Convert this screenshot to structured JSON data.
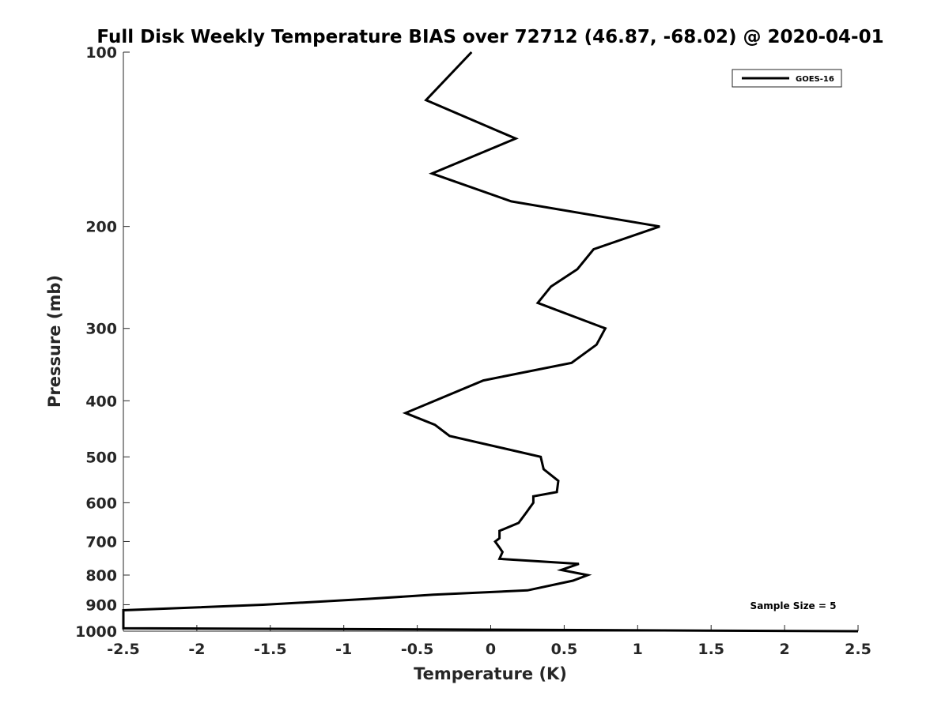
{
  "chart_data": {
    "type": "line",
    "title": "Full Disk Weekly Temperature BIAS over 72712 (46.87, -68.02) @ 2020-04-01",
    "xlabel": "Temperature (K)",
    "ylabel": "Pressure (mb)",
    "xlim": [
      -2.5,
      2.5
    ],
    "ylim": [
      100,
      1000
    ],
    "y_scale": "log",
    "y_reversed": true,
    "xticks": [
      "-2.5",
      "-2",
      "-1.5",
      "-1",
      "-0.5",
      "0",
      "0.5",
      "1",
      "1.5",
      "2",
      "2.5"
    ],
    "yticks": [
      "100",
      "200",
      "300",
      "400",
      "500",
      "600",
      "700",
      "800",
      "900",
      "1000"
    ],
    "grid": false,
    "legend": {
      "position": "top-right",
      "entries": [
        "GOES-16"
      ]
    },
    "annotation": "Sample Size = 5",
    "series": [
      {
        "name": "GOES-16",
        "color": "#000000",
        "points": [
          [
            -0.13,
            100
          ],
          [
            -0.44,
            121
          ],
          [
            0.17,
            141
          ],
          [
            -0.4,
            162
          ],
          [
            0.14,
            181
          ],
          [
            1.15,
            200
          ],
          [
            0.7,
            219
          ],
          [
            0.59,
            237
          ],
          [
            0.41,
            254
          ],
          [
            0.32,
            271
          ],
          [
            0.78,
            300
          ],
          [
            0.72,
            320
          ],
          [
            0.55,
            344
          ],
          [
            -0.05,
            369
          ],
          [
            -0.38,
            400
          ],
          [
            -0.58,
            420
          ],
          [
            -0.38,
            440
          ],
          [
            -0.28,
            460
          ],
          [
            0.34,
            500
          ],
          [
            0.36,
            525
          ],
          [
            0.46,
            550
          ],
          [
            0.45,
            575
          ],
          [
            0.29,
            585
          ],
          [
            0.29,
            600
          ],
          [
            0.24,
            625
          ],
          [
            0.19,
            650
          ],
          [
            0.06,
            671
          ],
          [
            0.06,
            691
          ],
          [
            0.03,
            700
          ],
          [
            0.06,
            717
          ],
          [
            0.08,
            730
          ],
          [
            0.06,
            750
          ],
          [
            0.6,
            765
          ],
          [
            0.48,
            784
          ],
          [
            0.66,
            800
          ],
          [
            0.56,
            818
          ],
          [
            0.25,
            850
          ],
          [
            -0.39,
            865
          ],
          [
            -0.85,
            880
          ],
          [
            -1.55,
            900
          ],
          [
            -2.5,
            920
          ],
          [
            -2.5,
            988
          ],
          [
            2.5,
            1000
          ]
        ]
      }
    ]
  }
}
